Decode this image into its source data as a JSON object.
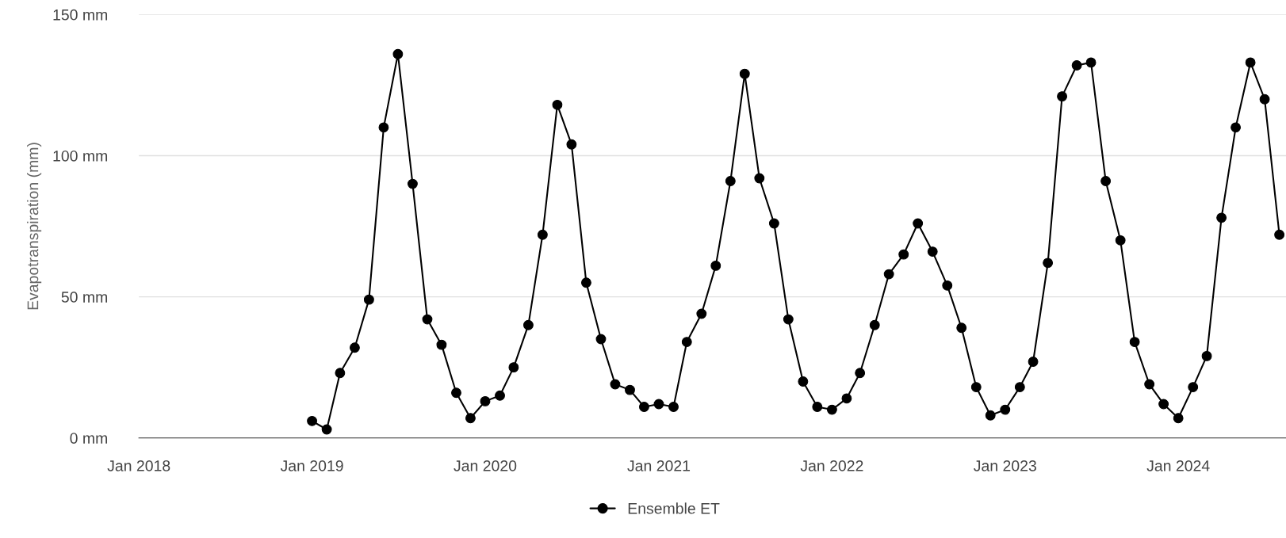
{
  "chart_data": {
    "type": "line",
    "ylabel": "Evapotranspiration (mm)",
    "x": [
      "2019-01",
      "2019-02",
      "2019-03",
      "2019-04",
      "2019-05",
      "2019-06",
      "2019-07",
      "2019-08",
      "2019-09",
      "2019-10",
      "2019-11",
      "2019-12",
      "2020-01",
      "2020-02",
      "2020-03",
      "2020-04",
      "2020-05",
      "2020-06",
      "2020-07",
      "2020-08",
      "2020-09",
      "2020-10",
      "2020-11",
      "2020-12",
      "2021-01",
      "2021-02",
      "2021-03",
      "2021-04",
      "2021-05",
      "2021-06",
      "2021-07",
      "2021-08",
      "2021-09",
      "2021-10",
      "2021-11",
      "2021-12",
      "2022-01",
      "2022-02",
      "2022-03",
      "2022-04",
      "2022-05",
      "2022-06",
      "2022-07",
      "2022-08",
      "2022-09",
      "2022-10",
      "2022-11",
      "2022-12",
      "2023-01",
      "2023-02",
      "2023-03",
      "2023-04",
      "2023-05",
      "2023-06",
      "2023-07",
      "2023-08",
      "2023-09",
      "2023-10",
      "2023-11",
      "2023-12",
      "2024-01",
      "2024-02",
      "2024-03",
      "2024-04",
      "2024-05",
      "2024-06",
      "2024-07",
      "2024-08"
    ],
    "series": [
      {
        "name": "Ensemble ET",
        "color": "#000000",
        "values": [
          6,
          3,
          23,
          32,
          49,
          110,
          136,
          90,
          42,
          33,
          16,
          7,
          13,
          15,
          25,
          40,
          72,
          118,
          104,
          55,
          35,
          19,
          17,
          11,
          12,
          11,
          34,
          44,
          61,
          91,
          129,
          92,
          76,
          42,
          20,
          11,
          10,
          14,
          23,
          40,
          58,
          65,
          76,
          66,
          54,
          39,
          18,
          8,
          10,
          18,
          27,
          62,
          121,
          132,
          133,
          91,
          70,
          34,
          19,
          12,
          7,
          18,
          29,
          78,
          110,
          133,
          120,
          72
        ]
      }
    ],
    "xlim": [
      "2018-01-01",
      "2024-08-15"
    ],
    "xticks": [
      {
        "value": "2018-01",
        "label": "Jan 2018"
      },
      {
        "value": "2019-01",
        "label": "Jan 2019"
      },
      {
        "value": "2020-01",
        "label": "Jan 2020"
      },
      {
        "value": "2021-01",
        "label": "Jan 2021"
      },
      {
        "value": "2022-01",
        "label": "Jan 2022"
      },
      {
        "value": "2023-01",
        "label": "Jan 2023"
      },
      {
        "value": "2024-01",
        "label": "Jan 2024"
      }
    ],
    "ylim": [
      0,
      150
    ],
    "yticks": [
      {
        "value": 0,
        "label": "0 mm"
      },
      {
        "value": 50,
        "label": "50 mm"
      },
      {
        "value": 100,
        "label": "100 mm"
      },
      {
        "value": 150,
        "label": "150 mm"
      }
    ],
    "grid": "y",
    "legend": "bottom",
    "marker": "circle",
    "line_style": "solid"
  }
}
